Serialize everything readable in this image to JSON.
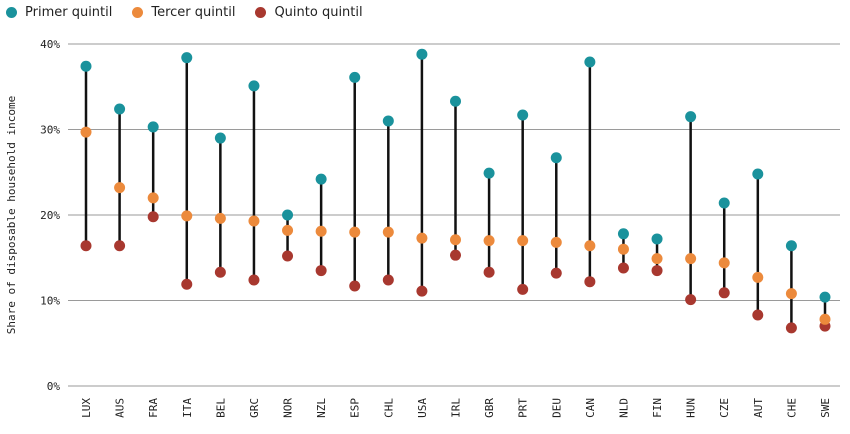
{
  "chart_data": {
    "type": "scatter",
    "title": "",
    "xlabel": "",
    "ylabel": "Share of disposable household income",
    "ylim": [
      0,
      40
    ],
    "yticks": [
      "0%",
      "10%",
      "20%",
      "30%",
      "40%"
    ],
    "grid": true,
    "legend_position": "top-left",
    "categories": [
      "LUX",
      "AUS",
      "FRA",
      "ITA",
      "BEL",
      "GRC",
      "NOR",
      "NZL",
      "ESP",
      "CHL",
      "USA",
      "IRL",
      "GBR",
      "PRT",
      "DEU",
      "CAN",
      "NLD",
      "FIN",
      "HUN",
      "CZE",
      "AUT",
      "CHE",
      "SWE"
    ],
    "series": [
      {
        "name": "Primer quintil",
        "color": "#1a929c",
        "values": [
          37.4,
          32.4,
          30.3,
          38.4,
          29.0,
          35.1,
          20.0,
          24.2,
          36.1,
          31.0,
          38.8,
          33.3,
          24.9,
          31.7,
          26.7,
          37.9,
          17.8,
          17.2,
          31.5,
          21.4,
          24.8,
          16.4,
          10.4
        ]
      },
      {
        "name": "Tercer quintil",
        "color": "#ec8a3c",
        "values": [
          29.7,
          23.2,
          22.0,
          19.9,
          19.6,
          19.3,
          18.2,
          18.1,
          18.0,
          18.0,
          17.3,
          17.1,
          17.0,
          17.0,
          16.8,
          16.4,
          16.0,
          14.9,
          14.9,
          14.4,
          12.7,
          10.8,
          7.8
        ]
      },
      {
        "name": "Quinto quintil",
        "color": "#a8382f",
        "values": [
          16.4,
          16.4,
          19.8,
          11.9,
          13.3,
          12.4,
          15.2,
          13.5,
          11.7,
          12.4,
          11.1,
          15.3,
          13.3,
          11.3,
          13.2,
          12.2,
          13.8,
          13.5,
          10.1,
          10.9,
          8.3,
          6.8,
          7.0
        ]
      }
    ]
  }
}
